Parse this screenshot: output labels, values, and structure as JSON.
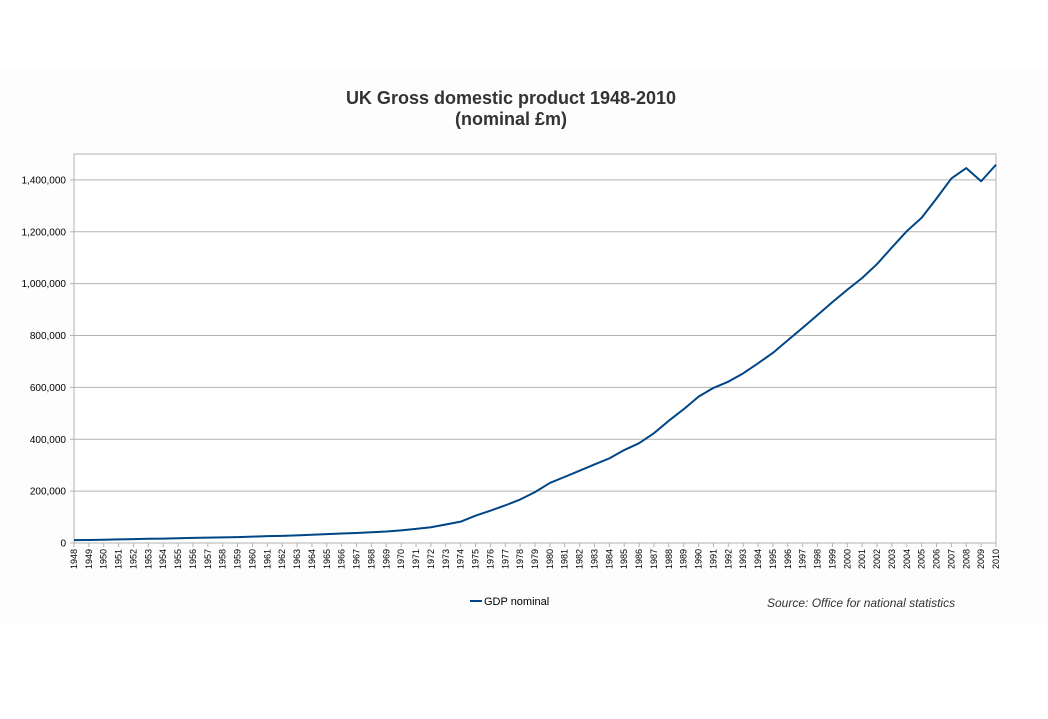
{
  "chart_data": {
    "type": "line",
    "title": "UK Gross domestic product 1948-2010",
    "subtitle": "(nominal £m)",
    "xlabel": "",
    "ylabel": "",
    "x": [
      "1948",
      "1949",
      "1950",
      "1951",
      "1952",
      "1953",
      "1954",
      "1955",
      "1956",
      "1957",
      "1958",
      "1959",
      "1960",
      "1961",
      "1962",
      "1963",
      "1964",
      "1965",
      "1966",
      "1967",
      "1968",
      "1969",
      "1970",
      "1971",
      "1972",
      "1973",
      "1974",
      "1975",
      "1976",
      "1977",
      "1978",
      "1979",
      "1980",
      "1981",
      "1982",
      "1983",
      "1984",
      "1985",
      "1986",
      "1987",
      "1988",
      "1989",
      "1990",
      "1991",
      "1992",
      "1993",
      "1994",
      "1995",
      "1996",
      "1997",
      "1998",
      "1999",
      "2000",
      "2001",
      "2002",
      "2003",
      "2004",
      "2005",
      "2006",
      "2007",
      "2008",
      "2009",
      "2010"
    ],
    "series": [
      {
        "name": "GDP nominal",
        "color": "#004586",
        "values": [
          11000,
          11600,
          12300,
          13900,
          15100,
          16300,
          17000,
          18200,
          19700,
          20800,
          21600,
          22800,
          24600,
          26300,
          27500,
          29300,
          31900,
          34200,
          36400,
          38400,
          41400,
          44200,
          48800,
          54400,
          60900,
          71200,
          82300,
          105300,
          124600,
          145100,
          167600,
          196200,
          231600,
          255000,
          278800,
          303000,
          326300,
          358500,
          384800,
          423400,
          471500,
          515900,
          564500,
          598100,
          622100,
          654200,
          693000,
          733300,
          781700,
          830100,
          879100,
          928700,
          976500,
          1021800,
          1075600,
          1139700,
          1202400,
          1254300,
          1328400,
          1405800,
          1445600,
          1394900,
          1458500
        ]
      }
    ],
    "ylim": [
      0,
      1500000
    ],
    "y_ticks": [
      "0",
      "200,000",
      "400,000",
      "600,000",
      "800,000",
      "1,000,000",
      "1,200,000",
      "1,400,000"
    ],
    "grid": true,
    "legend_position": "bottom",
    "annotation": "Source: Office for national statistics"
  }
}
